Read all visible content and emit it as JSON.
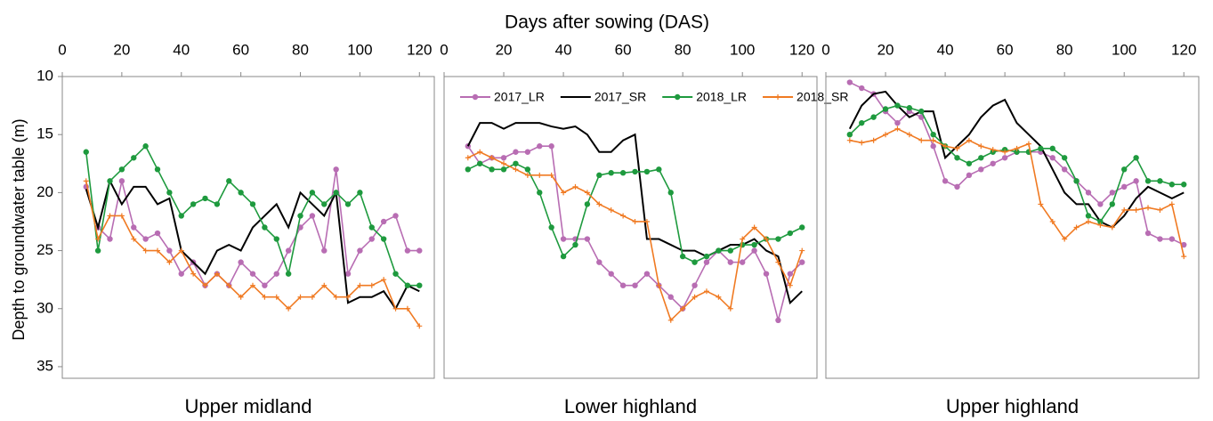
{
  "xlabel": "Days after sowing (DAS)",
  "ylabel": "Depth to groundwater table (m)",
  "chart_data": [
    {
      "type": "line",
      "title": "Upper midland",
      "x": [
        8,
        12,
        16,
        20,
        24,
        28,
        32,
        36,
        40,
        44,
        48,
        52,
        56,
        60,
        64,
        68,
        72,
        76,
        80,
        84,
        88,
        92,
        96,
        100,
        104,
        108,
        112,
        116,
        120
      ],
      "xlim": [
        0,
        125
      ],
      "xticks": [
        0,
        20,
        40,
        60,
        80,
        100,
        120
      ],
      "ylim": [
        10,
        36
      ],
      "yticks": [
        10,
        15,
        20,
        25,
        30,
        35
      ],
      "y_inverted": true,
      "legend": false,
      "series": [
        {
          "name": "2017_LR",
          "color": "#b86db3",
          "marker": "circle",
          "values": [
            19.5,
            23,
            24,
            19,
            23,
            24,
            23.5,
            25,
            27,
            26,
            28,
            27,
            28,
            26,
            27,
            28,
            27,
            25,
            23,
            22,
            25,
            18,
            27,
            25,
            24,
            22.5,
            22,
            25,
            25
          ]
        },
        {
          "name": "2017_SR",
          "color": "#000000",
          "marker": "none",
          "values": [
            19.7,
            23,
            19,
            21,
            19.5,
            19.5,
            21,
            20.5,
            25,
            26,
            27,
            25,
            24.5,
            25,
            23,
            22,
            21,
            23,
            20,
            21,
            22,
            20,
            29.5,
            29,
            29,
            28.5,
            30,
            28,
            28.5
          ]
        },
        {
          "name": "2018_LR",
          "color": "#1e9a3e",
          "marker": "circle",
          "values": [
            16.5,
            25,
            19,
            18,
            17,
            16,
            18,
            20,
            22,
            21,
            20.5,
            21,
            19,
            20,
            21,
            23,
            24,
            27,
            22,
            20,
            21,
            20,
            21,
            20,
            23,
            24,
            27,
            28,
            28
          ]
        },
        {
          "name": "2018_SR",
          "color": "#f07a22",
          "marker": "plus",
          "values": [
            19,
            24,
            22,
            22,
            24,
            25,
            25,
            26,
            25,
            27,
            28,
            27,
            28,
            29,
            28,
            29,
            29,
            30,
            29,
            29,
            28,
            29,
            29,
            28,
            28,
            27.5,
            30,
            30,
            31.5
          ]
        }
      ]
    },
    {
      "type": "line",
      "title": "Lower highland",
      "x": [
        8,
        12,
        16,
        20,
        24,
        28,
        32,
        36,
        40,
        44,
        48,
        52,
        56,
        60,
        64,
        68,
        72,
        76,
        80,
        84,
        88,
        92,
        96,
        100,
        104,
        108,
        112,
        116,
        120
      ],
      "xlim": [
        0,
        125
      ],
      "xticks": [
        0,
        20,
        40,
        60,
        80,
        100,
        120
      ],
      "ylim": [
        10,
        36
      ],
      "y_inverted": true,
      "legend": true,
      "series": [
        {
          "name": "2017_LR",
          "color": "#b86db3",
          "marker": "circle",
          "values": [
            16,
            17.5,
            17,
            17,
            16.5,
            16.5,
            16,
            16,
            24,
            24,
            24,
            26,
            27,
            28,
            28,
            27,
            28,
            29,
            30,
            28,
            26,
            25,
            26,
            26,
            25,
            27,
            31,
            27,
            26
          ]
        },
        {
          "name": "2017_SR",
          "color": "#000000",
          "marker": "none",
          "values": [
            16,
            14,
            14,
            14.5,
            14,
            14,
            14,
            14.3,
            14.5,
            14.3,
            15,
            16.5,
            16.5,
            15.5,
            15,
            24,
            24,
            24.5,
            25,
            25,
            25.5,
            25,
            24.5,
            24.5,
            24,
            25,
            25.5,
            29.5,
            28.5
          ]
        },
        {
          "name": "2018_LR",
          "color": "#1e9a3e",
          "marker": "circle",
          "values": [
            18,
            17.5,
            18,
            18,
            17.5,
            18,
            20,
            23,
            25.5,
            24.5,
            21,
            18.5,
            18.3,
            18.3,
            18.2,
            18.2,
            18,
            20,
            25.5,
            26,
            25.5,
            25,
            25,
            24.5,
            24.5,
            24,
            24,
            23.5,
            23
          ]
        },
        {
          "name": "2018_SR",
          "color": "#f07a22",
          "marker": "plus",
          "values": [
            17,
            16.5,
            17,
            17.5,
            18,
            18.5,
            18.5,
            18.5,
            20,
            19.5,
            20,
            21,
            21.5,
            22,
            22.5,
            22.5,
            28,
            31,
            30,
            29,
            28.5,
            29,
            30,
            24,
            23,
            24,
            26,
            28,
            25
          ]
        }
      ]
    },
    {
      "type": "line",
      "title": "Upper highland",
      "x": [
        8,
        12,
        16,
        20,
        24,
        28,
        32,
        36,
        40,
        44,
        48,
        52,
        56,
        60,
        64,
        68,
        72,
        76,
        80,
        84,
        88,
        92,
        96,
        100,
        104,
        108,
        112,
        116,
        120
      ],
      "xlim": [
        0,
        125
      ],
      "xticks": [
        0,
        20,
        40,
        60,
        80,
        100,
        120
      ],
      "ylim": [
        10,
        36
      ],
      "y_inverted": true,
      "legend": false,
      "series": [
        {
          "name": "2017_LR",
          "color": "#b86db3",
          "marker": "circle",
          "values": [
            10.5,
            11,
            11.5,
            13,
            14,
            13,
            13.5,
            16,
            19,
            19.5,
            18.5,
            18,
            17.5,
            17,
            16.5,
            16.5,
            16.5,
            17,
            18,
            19,
            20,
            21,
            20,
            19.5,
            19,
            23.5,
            24,
            24,
            24.5
          ]
        },
        {
          "name": "2017_SR",
          "color": "#000000",
          "marker": "none",
          "values": [
            14.5,
            12.5,
            11.5,
            11.3,
            12.5,
            13.5,
            13,
            13,
            17,
            16,
            15,
            13.5,
            12.5,
            12,
            14,
            15,
            16,
            18,
            20,
            21,
            21,
            22.5,
            23,
            22,
            20.5,
            19.5,
            20,
            20.5,
            20
          ]
        },
        {
          "name": "2018_LR",
          "color": "#1e9a3e",
          "marker": "circle",
          "values": [
            15,
            14,
            13.5,
            12.8,
            12.5,
            12.7,
            13,
            15,
            16,
            17,
            17.5,
            17,
            16.5,
            16.3,
            16.5,
            16.5,
            16.2,
            16.2,
            17,
            19,
            22,
            22.5,
            21,
            18,
            17,
            19,
            19,
            19.3,
            19.3
          ]
        },
        {
          "name": "2018_SR",
          "color": "#f07a22",
          "marker": "plus",
          "values": [
            15.5,
            15.7,
            15.5,
            15,
            14.5,
            15,
            15.5,
            15.5,
            16,
            16.2,
            15.5,
            16,
            16.3,
            16.5,
            16.2,
            15.8,
            21,
            22.5,
            24,
            23,
            22.5,
            22.8,
            23,
            21.5,
            21.5,
            21.3,
            21.5,
            21,
            25.5
          ]
        }
      ]
    }
  ]
}
